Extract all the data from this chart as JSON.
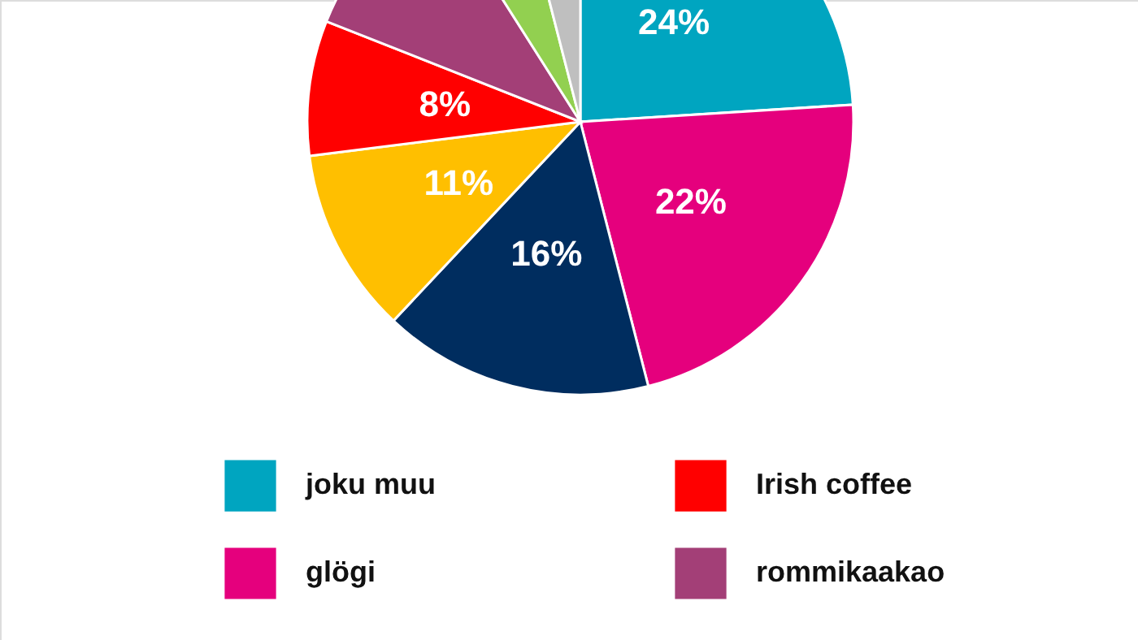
{
  "chart_data": {
    "type": "pie",
    "categories": [
      "joku muu",
      "glögi",
      null,
      null,
      "Irish coffee",
      "rommikaakao",
      null,
      null
    ],
    "values": [
      24,
      22,
      16,
      11,
      8,
      10,
      5,
      4
    ],
    "value_labels": [
      "24%",
      "22%",
      "16%",
      "11%",
      "8%",
      null,
      null,
      null
    ],
    "colors": [
      "#00a5c0",
      "#e5007d",
      "#002d5f",
      "#ffbf00",
      "#ff0000",
      "#a33f77",
      "#92d050",
      "#bfbfbf"
    ],
    "legend": "bottom"
  }
}
